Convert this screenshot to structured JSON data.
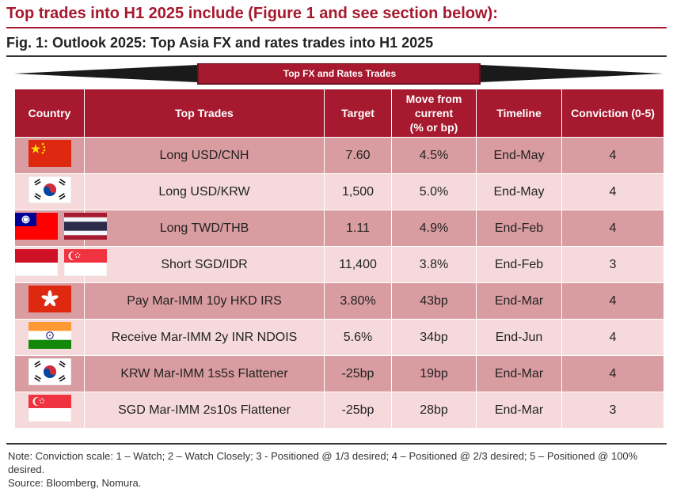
{
  "headline": "Top trades into H1 2025 include (Figure 1 and see section below):",
  "figure_title": "Fig. 1: Outlook 2025: Top Asia FX and rates trades into H1 2025",
  "banner_label": "Top FX and Rates Trades",
  "colors": {
    "accent": "#a6192e",
    "row_dark": "#d99ca0",
    "row_light": "#f6dadb"
  },
  "columns": {
    "country": "Country",
    "trades": "Top Trades",
    "target": "Target",
    "move_line1": "Move from",
    "move_line2": "current",
    "move_line3": "(% or bp)",
    "timeline": "Timeline",
    "conviction": "Conviction (0-5)"
  },
  "rows": [
    {
      "flags": [
        "china-flag"
      ],
      "trade": "Long USD/CNH",
      "target": "7.60",
      "move": "4.5%",
      "timeline": "End-May",
      "conviction": "4"
    },
    {
      "flags": [
        "south-korea-flag"
      ],
      "trade": "Long USD/KRW",
      "target": "1,500",
      "move": "5.0%",
      "timeline": "End-May",
      "conviction": "4"
    },
    {
      "flags": [
        "taiwan-flag",
        "thailand-flag"
      ],
      "trade": "Long TWD/THB",
      "target": "1.11",
      "move": "4.9%",
      "timeline": "End-Feb",
      "conviction": "4"
    },
    {
      "flags": [
        "indonesia-flag",
        "singapore-flag"
      ],
      "trade": "Short SGD/IDR",
      "target": "11,400",
      "move": "3.8%",
      "timeline": "End-Feb",
      "conviction": "3"
    },
    {
      "flags": [
        "hong-kong-flag"
      ],
      "trade": "Pay Mar-IMM 10y HKD IRS",
      "target": "3.80%",
      "move": "43bp",
      "timeline": "End-Mar",
      "conviction": "4"
    },
    {
      "flags": [
        "india-flag"
      ],
      "trade": "Receive Mar-IMM 2y INR NDOIS",
      "target": "5.6%",
      "move": "34bp",
      "timeline": "End-Jun",
      "conviction": "4"
    },
    {
      "flags": [
        "south-korea-flag"
      ],
      "trade": "KRW Mar-IMM 1s5s Flattener",
      "target": "-25bp",
      "move": "19bp",
      "timeline": "End-Mar",
      "conviction": "4"
    },
    {
      "flags": [
        "singapore-flag"
      ],
      "trade": "SGD Mar-IMM 2s10s Flattener",
      "target": "-25bp",
      "move": "28bp",
      "timeline": "End-Mar",
      "conviction": "3"
    }
  ],
  "note": "Note: Conviction scale: 1 – Watch; 2 – Watch Closely; 3 - Positioned @ 1/3 desired; 4 – Positioned @ 2/3 desired; 5 – Positioned @ 100% desired.",
  "source": "Source: Bloomberg, Nomura."
}
